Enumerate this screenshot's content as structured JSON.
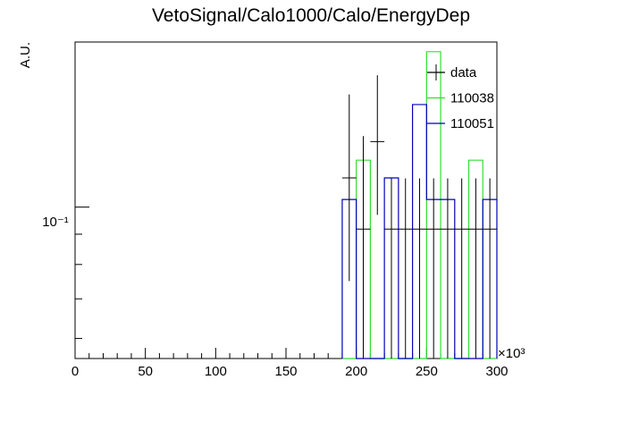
{
  "chart_data": {
    "type": "histogram",
    "title": "VetoSignal/Calo1000/Calo/EnergyDep",
    "xlabel": "",
    "ylabel": "A.U.",
    "x_exponent_label": "×10³",
    "xlim": [
      0,
      300
    ],
    "ylim": [
      0.0555,
      0.19
    ],
    "y_log_scale": true,
    "x_ticks": [
      0,
      50,
      100,
      150,
      200,
      250,
      300
    ],
    "y_tick_label": "10⁻¹",
    "y_tick_value": 0.1,
    "legend_position": "top-right",
    "bin_edges": [
      190,
      200,
      210,
      220,
      230,
      240,
      250,
      260,
      270,
      280,
      290,
      300
    ],
    "series": [
      {
        "name": "data",
        "color": "#000000",
        "style": "points-with-errors",
        "points": [
          {
            "x": 195,
            "y": 0.112,
            "err_low": 0.037,
            "err_high": 0.043
          },
          {
            "x": 205,
            "y": 0.0918,
            "err_low": 0.092,
            "err_high": 0.04
          },
          {
            "x": 215,
            "y": 0.129,
            "err_low": 0.032,
            "err_high": 0.038
          },
          {
            "x": 225,
            "y": 0.0918,
            "err_low": 0.092,
            "err_high": 0.02
          },
          {
            "x": 235,
            "y": 0.0918,
            "err_low": 0.092,
            "err_high": 0.02
          },
          {
            "x": 245,
            "y": 0.0918,
            "err_low": 0.092,
            "err_high": 0.02
          },
          {
            "x": 255,
            "y": 0.0918,
            "err_low": 0.092,
            "err_high": 0.02
          },
          {
            "x": 265,
            "y": 0.0918,
            "err_low": 0.092,
            "err_high": 0.02
          },
          {
            "x": 275,
            "y": 0.0918,
            "err_low": 0.092,
            "err_high": 0.02
          },
          {
            "x": 285,
            "y": 0.0918,
            "err_low": 0.092,
            "err_high": 0.02
          },
          {
            "x": 295,
            "y": 0.0918,
            "err_low": 0.092,
            "err_high": 0.02
          }
        ]
      },
      {
        "name": "110038",
        "color": "#33dd33",
        "style": "step",
        "values": [
          0.05,
          0.12,
          0.05,
          0.05,
          0.05,
          0.05,
          0.183,
          0.05,
          0.05,
          0.12,
          0.05
        ]
      },
      {
        "name": "110051",
        "color": "#0000bb",
        "style": "step",
        "values": [
          0.103,
          0.05,
          0.05,
          0.112,
          0.05,
          0.149,
          0.103,
          0.103,
          0.05,
          0.05,
          0.103
        ]
      }
    ]
  }
}
